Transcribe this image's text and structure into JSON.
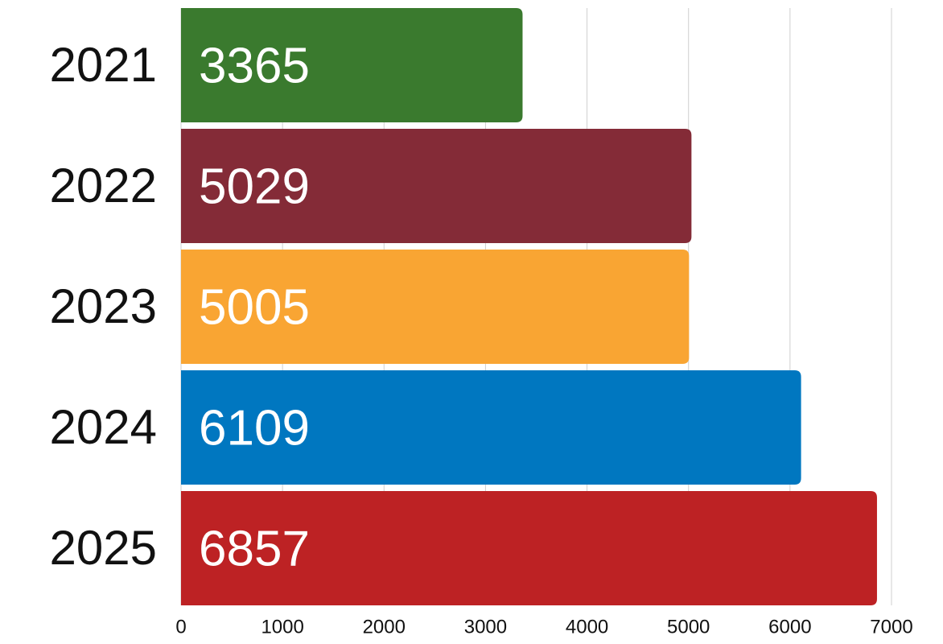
{
  "chart_data": {
    "type": "bar",
    "orientation": "horizontal",
    "categories": [
      "2021",
      "2022",
      "2023",
      "2024",
      "2025"
    ],
    "values": [
      3365,
      5029,
      5005,
      6109,
      6857
    ],
    "colors": [
      "#3a7a2e",
      "#842b37",
      "#f9a533",
      "#0077c0",
      "#bd2224"
    ],
    "xlim": [
      0,
      7000
    ],
    "xticks": [
      0,
      1000,
      2000,
      3000,
      4000,
      5000,
      6000,
      7000
    ],
    "grid": true
  }
}
